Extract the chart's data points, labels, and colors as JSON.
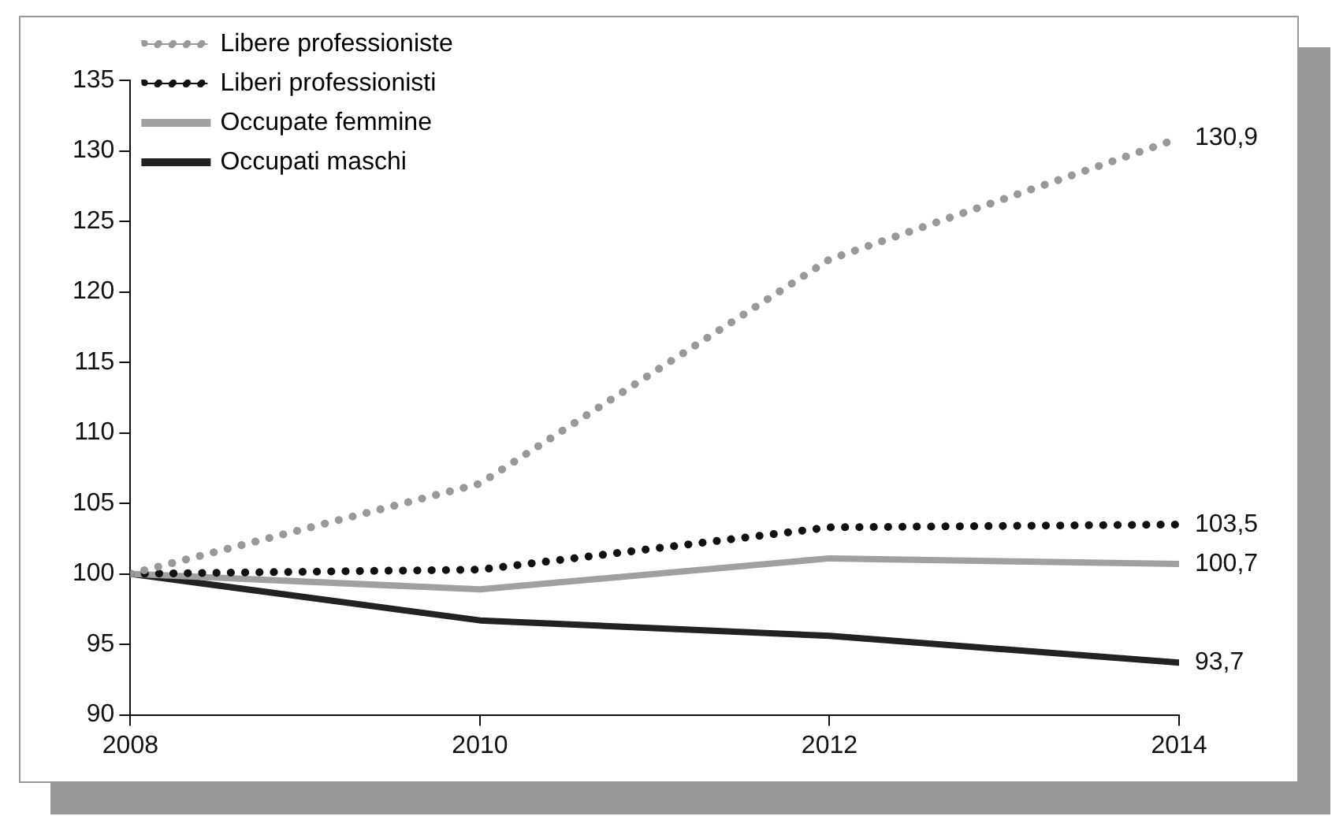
{
  "chart_data": {
    "type": "line",
    "x": [
      2008,
      2010,
      2012,
      2014
    ],
    "xlim": [
      2008,
      2014
    ],
    "xticks": [
      2008,
      2010,
      2012,
      2014
    ],
    "ylim": [
      90,
      135
    ],
    "yticks": [
      90,
      95,
      100,
      105,
      110,
      115,
      120,
      125,
      130,
      135
    ],
    "grid": false,
    "legend": "top left",
    "marker": "none",
    "series": [
      {
        "name": "Libere professioniste",
        "color": "#999999",
        "line_style": "dotted",
        "values": [
          100,
          106.4,
          122.3,
          130.9
        ],
        "value_labels": [
          null,
          null,
          null,
          "130,9"
        ]
      },
      {
        "name": "Liberi professionisti",
        "color": "#111111",
        "line_style": "dotted",
        "values": [
          100,
          100.3,
          103.3,
          103.5
        ],
        "value_labels": [
          null,
          null,
          null,
          "103,5"
        ]
      },
      {
        "name": "Occupate femmine",
        "color": "#a0a0a0",
        "line_style": "solid",
        "values": [
          100,
          98.9,
          101.1,
          100.7
        ],
        "value_labels": [
          null,
          null,
          null,
          "100,7"
        ]
      },
      {
        "name": "Occupati maschi",
        "color": "#222222",
        "line_style": "solid",
        "values": [
          100,
          96.7,
          95.6,
          93.7
        ],
        "value_labels": [
          null,
          null,
          null,
          "93,7"
        ]
      }
    ]
  }
}
